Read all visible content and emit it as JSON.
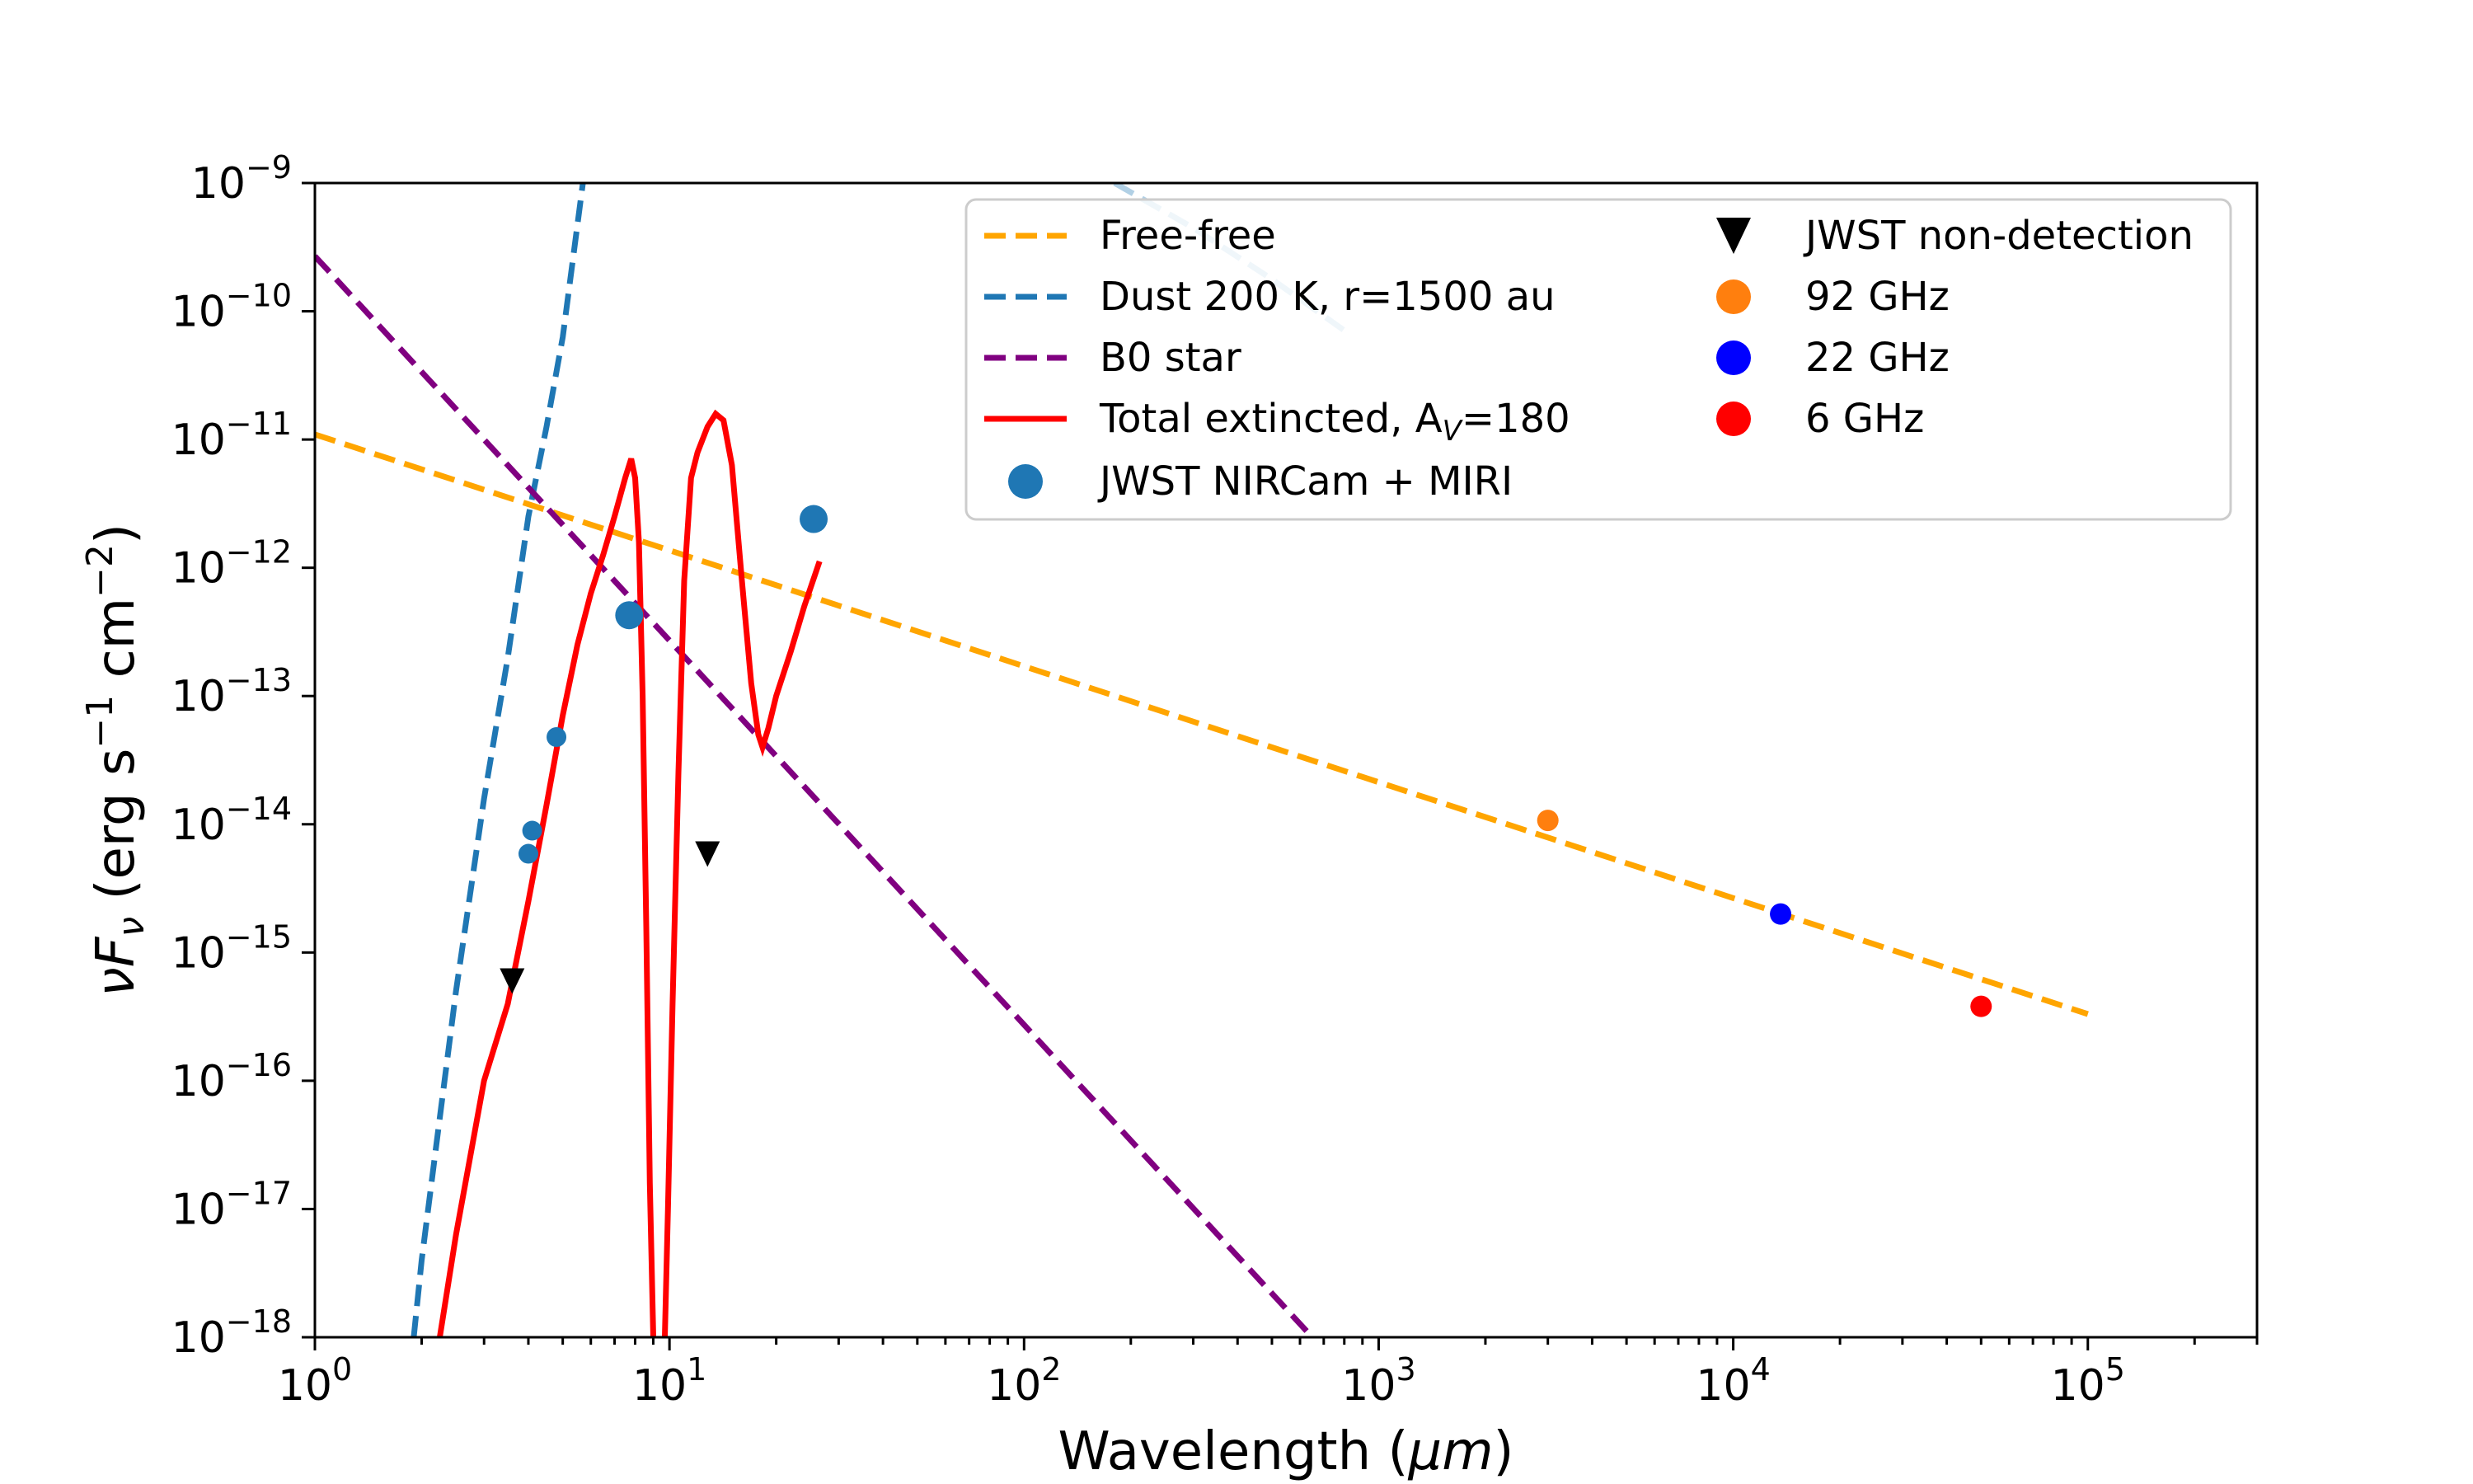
{
  "chart_data": {
    "type": "scatter",
    "xscale": "log",
    "yscale": "log",
    "xlim": [
      1,
      300000
    ],
    "ylim": [
      1e-18,
      1e-09
    ],
    "xlabel": {
      "main": "Wavelength (",
      "unit": "μm",
      "close": ")"
    },
    "ylabel": {
      "nu": "ν",
      "F": "F",
      "sub": "ν",
      "rest": " (erg s",
      "exp1": "−1",
      "mid": " cm",
      "exp2": "−2",
      "close": ")"
    },
    "x_ticks": [
      {
        "value": 1,
        "base": "10",
        "exp": "0"
      },
      {
        "value": 10,
        "base": "10",
        "exp": "1"
      },
      {
        "value": 100,
        "base": "10",
        "exp": "2"
      },
      {
        "value": 1000,
        "base": "10",
        "exp": "3"
      },
      {
        "value": 10000,
        "base": "10",
        "exp": "4"
      },
      {
        "value": 100000,
        "base": "10",
        "exp": "5"
      }
    ],
    "y_ticks": [
      {
        "value": -18,
        "base": "10",
        "exp": "−18"
      },
      {
        "value": -17,
        "base": "10",
        "exp": "−17"
      },
      {
        "value": -16,
        "base": "10",
        "exp": "−16"
      },
      {
        "value": -15,
        "base": "10",
        "exp": "−15"
      },
      {
        "value": -14,
        "base": "10",
        "exp": "−14"
      },
      {
        "value": -13,
        "base": "10",
        "exp": "−13"
      },
      {
        "value": -12,
        "base": "10",
        "exp": "−12"
      },
      {
        "value": -11,
        "base": "10",
        "exp": "−11"
      },
      {
        "value": -10,
        "base": "10",
        "exp": "−10"
      },
      {
        "value": -9,
        "base": "10",
        "exp": "−9"
      }
    ],
    "lines": [
      {
        "id": "free-free",
        "label": "Free-free",
        "color": "#FFA500",
        "dash": true,
        "points": [
          [
            1,
            -10.96
          ],
          [
            100000,
            -15.48
          ]
        ]
      },
      {
        "id": "dust",
        "label": "Dust 200 K, r=1500 au",
        "color": "#1f77b4",
        "dash": true,
        "points": [
          [
            1.9,
            -18.0
          ],
          [
            2.0,
            -17.4
          ],
          [
            2.2,
            -16.5
          ],
          [
            2.5,
            -15.3
          ],
          [
            3.0,
            -13.8
          ],
          [
            3.5,
            -12.7
          ],
          [
            4.0,
            -11.6
          ],
          [
            4.5,
            -10.9
          ],
          [
            5.0,
            -10.2
          ],
          [
            5.7,
            -9.0
          ]
        ]
      },
      {
        "id": "dust-tail",
        "label": "",
        "color": "#1f77b4",
        "dash": true,
        "points": [
          [
            180,
            -9.0
          ],
          [
            300,
            -9.35
          ],
          [
            500,
            -9.75
          ],
          [
            800,
            -10.15
          ]
        ]
      },
      {
        "id": "b0",
        "label": "B0 star",
        "color": "#800080",
        "dash": true,
        "points": [
          [
            1,
            -9.57
          ],
          [
            650,
            -18.0
          ]
        ]
      },
      {
        "id": "total",
        "label": "Total extincted, A",
        "label_sub": "V",
        "label_tail": "=180",
        "color": "#ff0000",
        "dash": false,
        "points": [
          [
            2.25,
            -18.0
          ],
          [
            2.5,
            -17.2
          ],
          [
            3.0,
            -16.0
          ],
          [
            3.5,
            -15.4
          ],
          [
            4.0,
            -14.6
          ],
          [
            4.5,
            -13.85
          ],
          [
            5.0,
            -13.15
          ],
          [
            5.5,
            -12.6
          ],
          [
            6.0,
            -12.2
          ],
          [
            6.5,
            -11.9
          ],
          [
            7.0,
            -11.6
          ],
          [
            7.5,
            -11.3
          ],
          [
            7.8,
            -11.15
          ],
          [
            8.0,
            -11.3
          ],
          [
            8.2,
            -11.8
          ],
          [
            8.4,
            -13.0
          ],
          [
            8.6,
            -14.8
          ],
          [
            8.8,
            -16.8
          ],
          [
            9.0,
            -18.0
          ]
        ]
      },
      {
        "id": "total-seg2",
        "label": "",
        "color": "#ff0000",
        "dash": false,
        "points": [
          [
            9.7,
            -18.0
          ],
          [
            9.9,
            -17.0
          ],
          [
            10.2,
            -15.4
          ],
          [
            10.6,
            -13.6
          ],
          [
            11.0,
            -12.1
          ],
          [
            11.5,
            -11.3
          ],
          [
            12.0,
            -11.1
          ],
          [
            12.8,
            -10.9
          ],
          [
            13.5,
            -10.8
          ],
          [
            14.2,
            -10.85
          ],
          [
            15.0,
            -11.2
          ],
          [
            16.0,
            -12.1
          ],
          [
            17.0,
            -12.9
          ],
          [
            17.8,
            -13.3
          ],
          [
            18.3,
            -13.4
          ],
          [
            19.0,
            -13.25
          ],
          [
            20.0,
            -13.0
          ],
          [
            22.0,
            -12.65
          ],
          [
            24.0,
            -12.3
          ],
          [
            26.5,
            -11.95
          ]
        ]
      }
    ],
    "points": [
      {
        "id": "jwst",
        "label": "JWST NIRCam + MIRI",
        "color": "#1f77b4",
        "marker": "circle",
        "size": "mixed",
        "data": [
          [
            4.0,
            -14.23,
            12
          ],
          [
            4.1,
            -14.05,
            12
          ],
          [
            4.8,
            -13.32,
            12
          ],
          [
            7.7,
            -12.37,
            17
          ],
          [
            25.5,
            -11.62,
            17
          ]
        ]
      },
      {
        "id": "nondet",
        "label": "JWST non-detection",
        "color": "#000000",
        "marker": "triangle",
        "data": [
          [
            3.6,
            -15.22
          ],
          [
            12.8,
            -14.23
          ]
        ]
      },
      {
        "id": "ghz92",
        "label": "92 GHz",
        "color": "#ff7f0e",
        "marker": "circle",
        "data": [
          [
            3000,
            -13.97
          ]
        ]
      },
      {
        "id": "ghz22",
        "label": "22 GHz",
        "color": "#0000ff",
        "marker": "circle",
        "data": [
          [
            13600,
            -14.7
          ]
        ]
      },
      {
        "id": "ghz6",
        "label": "6 GHz",
        "color": "#ff0000",
        "marker": "circle",
        "data": [
          [
            50000,
            -15.42
          ]
        ]
      }
    ],
    "legend_position": "top-right"
  }
}
